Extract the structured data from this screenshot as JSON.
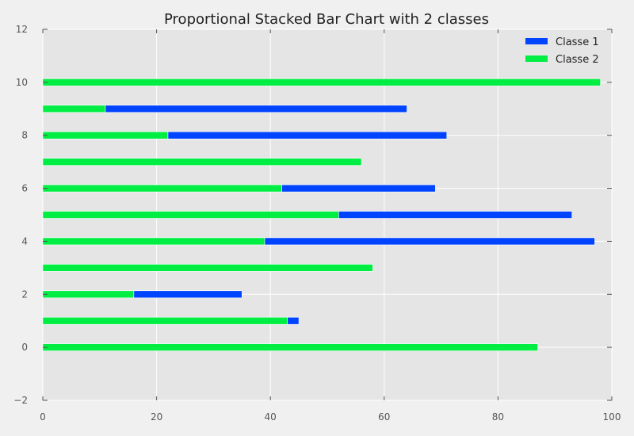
{
  "chart_data": {
    "type": "bar",
    "orientation": "horizontal",
    "stacked": true,
    "title": "Proportional Stacked Bar Chart with 2 classes",
    "xlabel": "",
    "ylabel": "",
    "xlim": [
      0,
      100
    ],
    "ylim": [
      -2,
      12
    ],
    "x_ticks": [
      0,
      20,
      40,
      60,
      80,
      100
    ],
    "y_ticks": [
      -2,
      0,
      2,
      4,
      6,
      8,
      10,
      12
    ],
    "grid": true,
    "legend_position": "top-right",
    "categories": [
      0,
      1,
      2,
      3,
      4,
      5,
      6,
      7,
      8,
      9,
      10
    ],
    "series": [
      {
        "name": "Classe 2",
        "color": "#00ee44",
        "values": [
          87,
          43,
          16,
          58,
          39,
          52,
          42,
          56,
          22,
          11,
          98
        ]
      },
      {
        "name": "Classe 1",
        "color": "#0044ff",
        "values": [
          0,
          2,
          19,
          0,
          58,
          41,
          27,
          0,
          49,
          53,
          0
        ]
      }
    ],
    "legend_order": [
      "Classe 1",
      "Classe 2"
    ]
  }
}
